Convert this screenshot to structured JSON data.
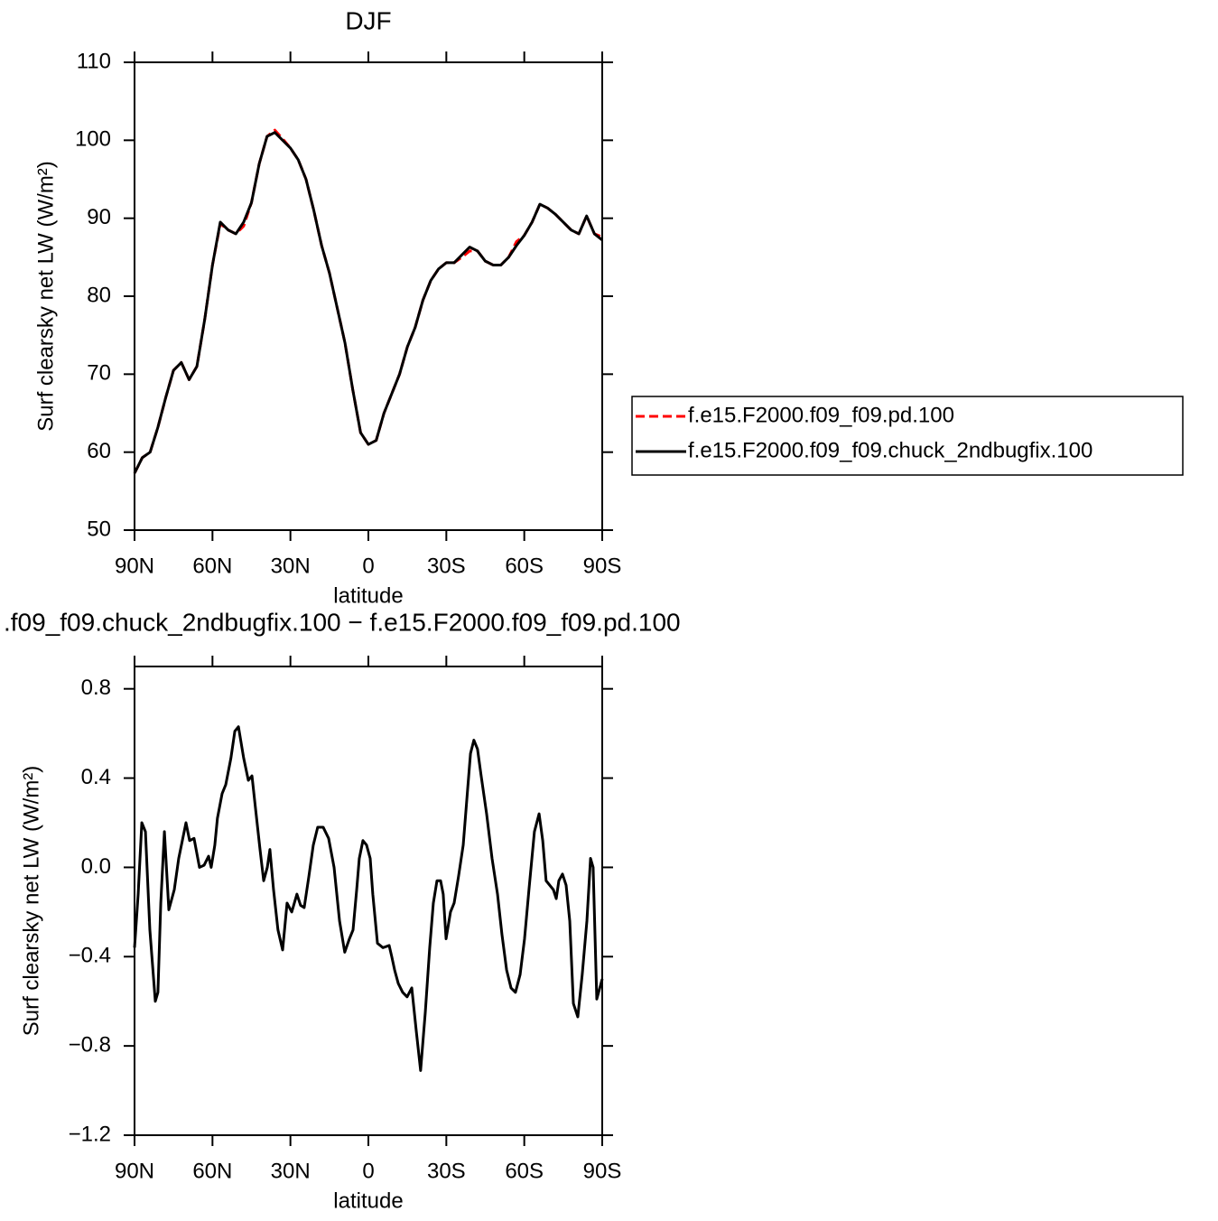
{
  "chart_data": [
    {
      "type": "line",
      "title": "DJF",
      "x_label": "latitude",
      "y_label": "Surf clearsky net LW (W/m²)",
      "x": [
        90,
        87,
        84,
        81,
        78,
        75,
        72,
        69,
        66,
        63,
        60,
        57,
        54,
        51,
        48,
        45,
        42,
        39,
        36,
        33,
        30,
        27,
        24,
        21,
        18,
        15,
        12,
        9,
        6,
        3,
        0,
        -3,
        -6,
        -9,
        -12,
        -15,
        -18,
        -21,
        -24,
        -27,
        -30,
        -33,
        -36,
        -39,
        -42,
        -45,
        -48,
        -51,
        -54,
        -57,
        -60,
        -63,
        -66,
        -69,
        -72,
        -75,
        -78,
        -81,
        -84,
        -87,
        -90
      ],
      "series": [
        {
          "name": "f.e15.F2000.f09_f09.pd.100",
          "color": "#ff0000",
          "line_style": "dashed",
          "values": [
            57.3,
            59.3,
            60,
            63.2,
            67,
            70.5,
            71.5,
            69.3,
            71,
            77,
            84,
            89.3,
            88.5,
            88,
            89.0,
            92,
            97,
            100.5,
            101.3,
            100.2,
            99,
            97.5,
            95,
            91,
            86.5,
            83,
            78.5,
            74,
            68,
            62.5,
            61,
            61.5,
            65,
            67.5,
            70,
            73.5,
            76,
            79.5,
            82,
            83.5,
            84.3,
            84.3,
            85.0,
            85.8,
            85.8,
            84.5,
            84,
            84,
            85,
            87,
            87.8,
            89.5,
            91.8,
            91.3,
            90.5,
            89.5,
            88.5,
            88,
            90.3,
            88,
            87.6
          ]
        },
        {
          "name": "f.e15.F2000.f09_f09.chuck_2ndbugfix.100",
          "color": "#000000",
          "line_style": "solid",
          "values": [
            57.3,
            59.3,
            60,
            63.2,
            67,
            70.5,
            71.5,
            69.3,
            71,
            77,
            84,
            89.5,
            88.5,
            88,
            89.5,
            92,
            97,
            100.5,
            101,
            100,
            99,
            97.5,
            95,
            91,
            86.5,
            83,
            78.5,
            74,
            68,
            62.5,
            61,
            61.5,
            65,
            67.5,
            70,
            73.5,
            76,
            79.5,
            82,
            83.5,
            84.3,
            84.3,
            85.3,
            86.3,
            85.8,
            84.5,
            84,
            84,
            85,
            86.5,
            87.8,
            89.5,
            91.8,
            91.3,
            90.5,
            89.5,
            88.5,
            88,
            90.3,
            88,
            87.2
          ]
        }
      ],
      "xlim": [
        90,
        -90
      ],
      "xticks": [
        {
          "value": 90,
          "label": "90N"
        },
        {
          "value": 60,
          "label": "60N"
        },
        {
          "value": 30,
          "label": "30N"
        },
        0,
        {
          "value": -30,
          "label": "30S"
        },
        {
          "value": -60,
          "label": "60S"
        },
        {
          "value": -90,
          "label": "90S"
        }
      ],
      "ylim": [
        50,
        110
      ],
      "yticks": [
        50,
        60,
        70,
        80,
        90,
        100,
        110
      ],
      "legend": "right"
    },
    {
      "type": "line",
      "title": ".f09_f09.chuck_2ndbugfix.100 − f.e15.F2000.f09_f09.pd.100",
      "x_label": "latitude",
      "y_label": "Surf clearsky net LW (W/m²)",
      "x": [
        90,
        88.6,
        87.2,
        85.8,
        84.1,
        82.0,
        81.0,
        79.9,
        78.5,
        76.8,
        74.7,
        73.0,
        70.2,
        68.8,
        67.1,
        65.0,
        63.2,
        61.5,
        60.5,
        59.1,
        58.1,
        56.3,
        54.9,
        52.9,
        51.4,
        50.0,
        48.0,
        46.2,
        44.8,
        43.4,
        41.7,
        40.3,
        38.9,
        37.9,
        36.5,
        34.8,
        33.0,
        31.3,
        29.5,
        27.5,
        26.1,
        24.7,
        22.9,
        21.2,
        19.5,
        17.4,
        15.3,
        13.2,
        11.1,
        9.1,
        7.3,
        5.9,
        4.5,
        3.5,
        2.1,
        0.7,
        -0.7,
        -1.7,
        -3.5,
        -5.6,
        -8.0,
        -9.0,
        -10.1,
        -11.5,
        -13.2,
        -14.9,
        -16.7,
        -18.4,
        -20.1,
        -21.9,
        -23.6,
        -25.0,
        -26.4,
        -27.8,
        -28.8,
        -29.9,
        -31.6,
        -33.0,
        -34.7,
        -36.5,
        -38.2,
        -39.3,
        -40.6,
        -42.0,
        -43.4,
        -45.5,
        -47.6,
        -49.7,
        -51.4,
        -53.2,
        -54.9,
        -56.6,
        -58.4,
        -60.1,
        -61.8,
        -63.9,
        -65.7,
        -67.1,
        -68.4,
        -71.2,
        -72.3,
        -73.3,
        -74.7,
        -76.1,
        -77.5,
        -78.9,
        -80.6,
        -82.3,
        -84.1,
        -85.5,
        -86.5,
        -87.9,
        -90.0
      ],
      "series": [
        {
          "color": "#000000",
          "line_style": "solid",
          "values": [
            -0.36,
            -0.12,
            0.2,
            0.16,
            -0.28,
            -0.6,
            -0.56,
            -0.16,
            0.16,
            -0.19,
            -0.1,
            0.04,
            0.2,
            0.12,
            0.13,
            0.0,
            0.01,
            0.05,
            0.0,
            0.1,
            0.22,
            0.33,
            0.37,
            0.49,
            0.61,
            0.63,
            0.49,
            0.39,
            0.41,
            0.26,
            0.08,
            -0.06,
            0.0,
            0.08,
            -0.1,
            -0.28,
            -0.37,
            -0.16,
            -0.2,
            -0.12,
            -0.17,
            -0.18,
            -0.04,
            0.1,
            0.18,
            0.18,
            0.13,
            0.0,
            -0.24,
            -0.38,
            -0.32,
            -0.28,
            -0.1,
            0.04,
            0.12,
            0.1,
            0.04,
            -0.12,
            -0.34,
            -0.36,
            -0.35,
            -0.4,
            -0.46,
            -0.52,
            -0.56,
            -0.58,
            -0.54,
            -0.73,
            -0.91,
            -0.65,
            -0.36,
            -0.16,
            -0.06,
            -0.06,
            -0.12,
            -0.32,
            -0.2,
            -0.16,
            -0.04,
            0.1,
            0.35,
            0.51,
            0.57,
            0.53,
            0.41,
            0.24,
            0.04,
            -0.12,
            -0.3,
            -0.46,
            -0.54,
            -0.56,
            -0.48,
            -0.32,
            -0.1,
            0.16,
            0.24,
            0.12,
            -0.06,
            -0.1,
            -0.14,
            -0.06,
            -0.03,
            -0.08,
            -0.24,
            -0.61,
            -0.67,
            -0.48,
            -0.24,
            0.04,
            0.0,
            -0.59,
            -0.5
          ]
        }
      ],
      "xlim": [
        90,
        -90
      ],
      "xticks": [
        {
          "value": 90,
          "label": "90N"
        },
        {
          "value": 60,
          "label": "60N"
        },
        {
          "value": 30,
          "label": "30N"
        },
        0,
        {
          "value": -30,
          "label": "30S"
        },
        {
          "value": -60,
          "label": "60S"
        },
        {
          "value": -90,
          "label": "90S"
        }
      ],
      "ylim": [
        -1.2,
        0.9
      ],
      "yticks": [
        {
          "value": -1.2,
          "label": "−1.2"
        },
        {
          "value": -0.8,
          "label": "−0.8"
        },
        {
          "value": -0.4,
          "label": "−0.4"
        },
        {
          "value": 0,
          "label": "0.0"
        },
        0.4,
        0.8
      ]
    }
  ]
}
